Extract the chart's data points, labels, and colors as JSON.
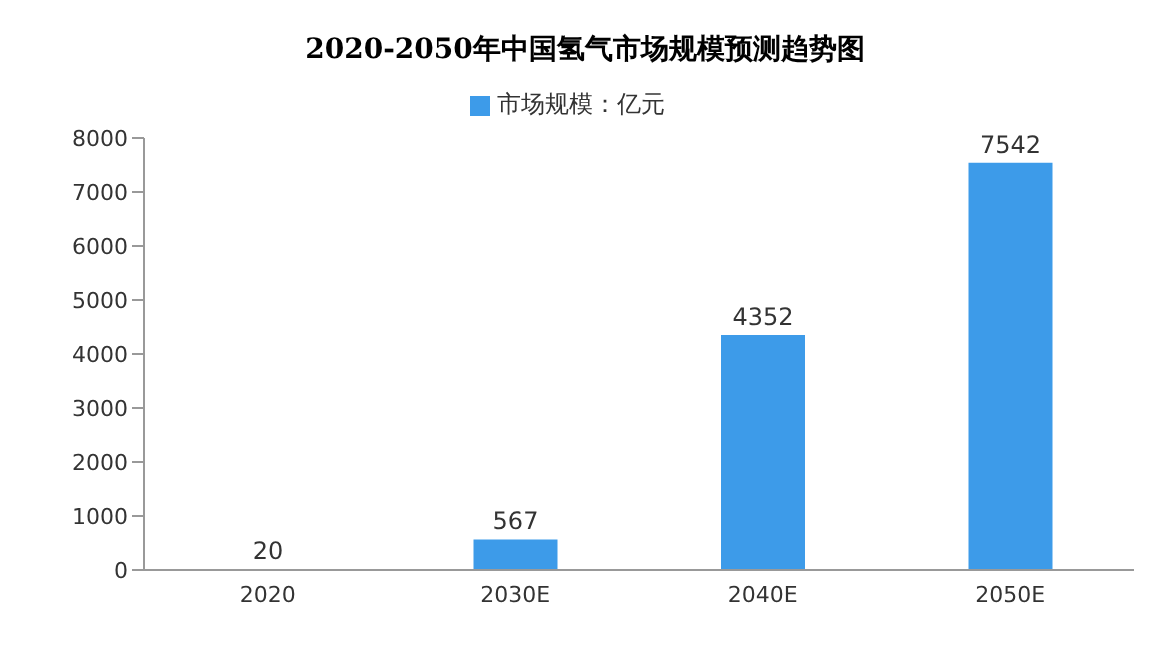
{
  "chart_data": {
    "type": "bar",
    "title": "2020-2050年中国氢气市场规模预测趋势图",
    "categories": [
      "2020",
      "2030E",
      "2040E",
      "2050E"
    ],
    "series": [
      {
        "name": "市场规模：亿元",
        "color": "#3d9be9",
        "values": [
          20,
          567,
          4352,
          7542
        ]
      }
    ],
    "ylim": [
      0,
      8000
    ],
    "yticks": [
      0,
      1000,
      2000,
      3000,
      4000,
      5000,
      6000,
      7000,
      8000
    ],
    "grid": false,
    "legend": "top",
    "data_labels": true
  }
}
